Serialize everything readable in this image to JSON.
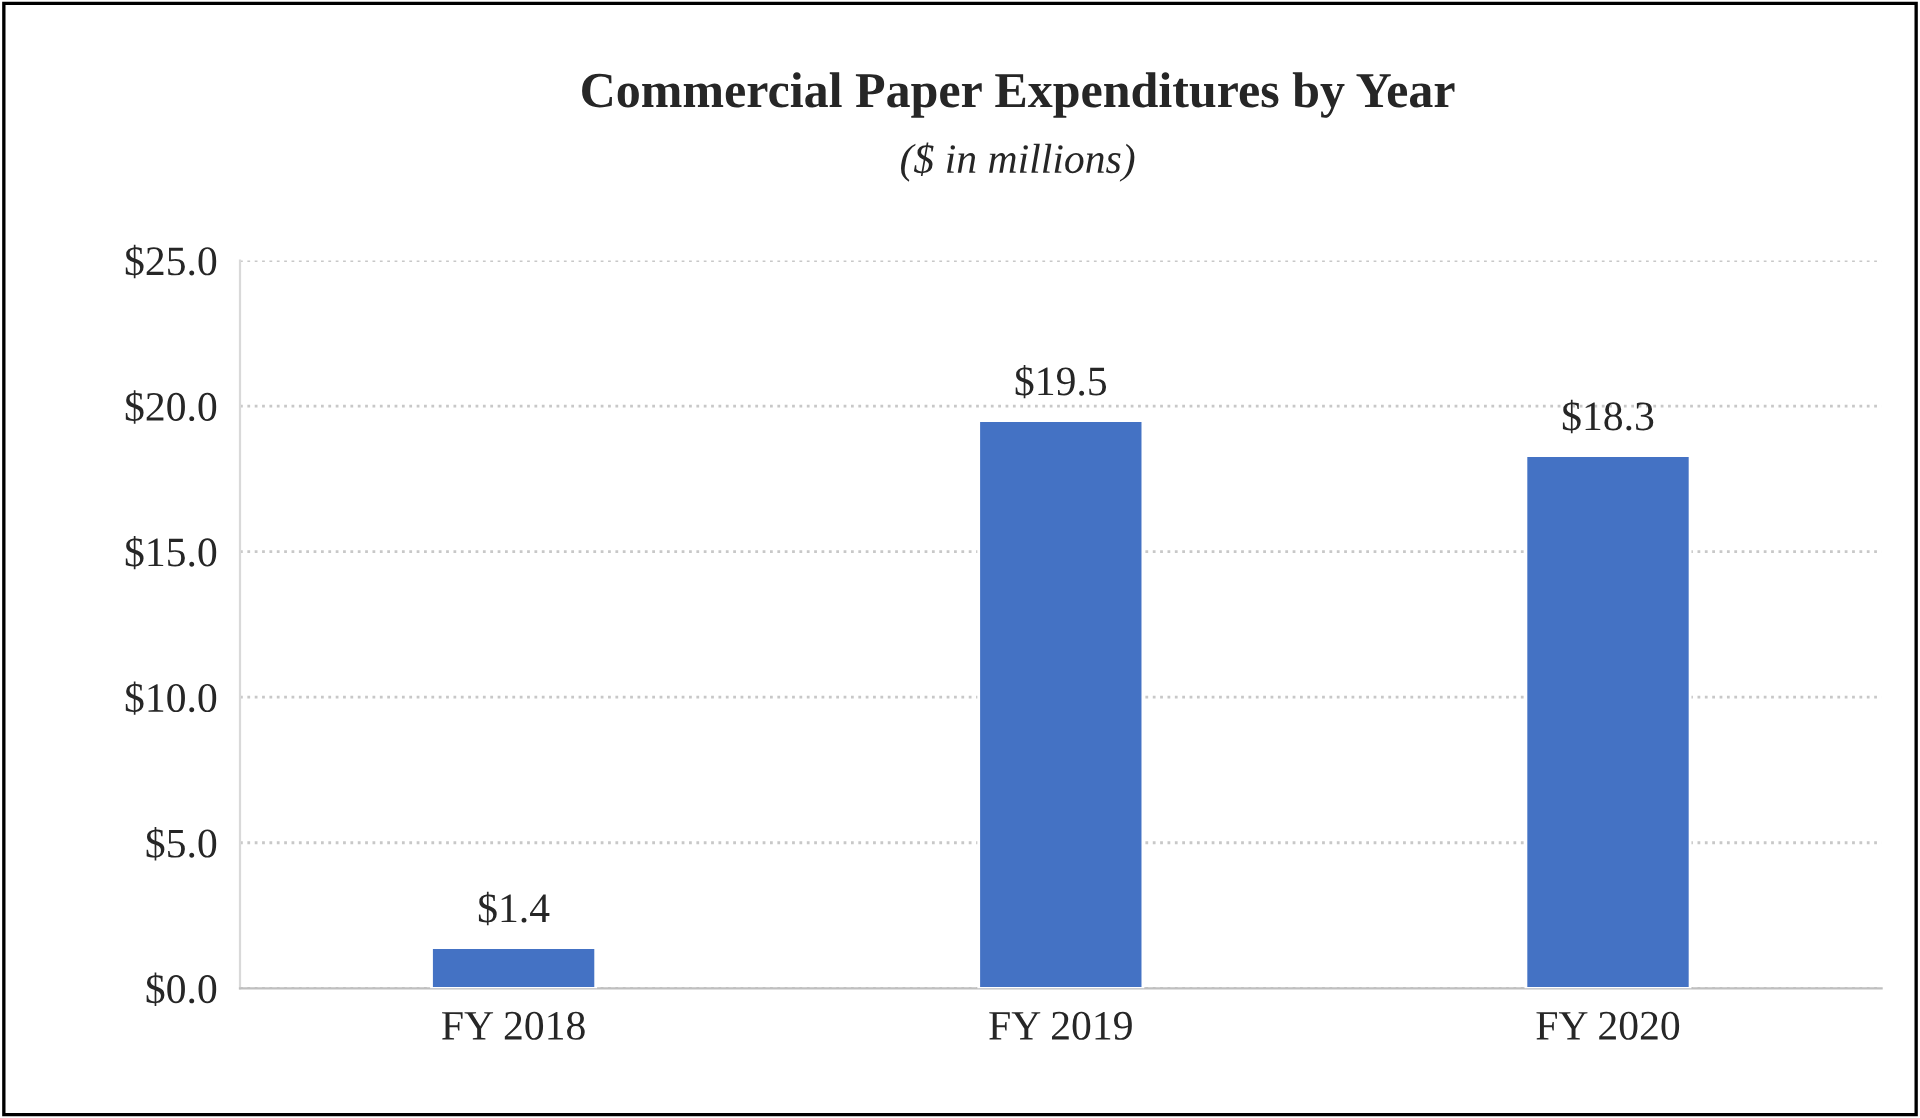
{
  "chart_data": {
    "type": "bar",
    "title": "Commercial Paper Expenditures by Year",
    "subtitle": "($ in millions)",
    "categories": [
      "FY 2018",
      "FY 2019",
      "FY 2020"
    ],
    "values": [
      1.4,
      19.5,
      18.3
    ],
    "color": "#4472c4",
    "value_labels": [
      "$1.4",
      "$19.5",
      "$18.3"
    ],
    "ylim": [
      0,
      25
    ],
    "yticks": [
      {
        "value": 0,
        "label": "$0.0"
      },
      {
        "value": 5,
        "label": "$5.0"
      },
      {
        "value": 10,
        "label": "$10.0"
      },
      {
        "value": 15,
        "label": "$15.0"
      },
      {
        "value": 20,
        "label": "$20.0"
      },
      {
        "value": 25,
        "label": "$25.0"
      }
    ],
    "grid": "y",
    "legend": false
  }
}
